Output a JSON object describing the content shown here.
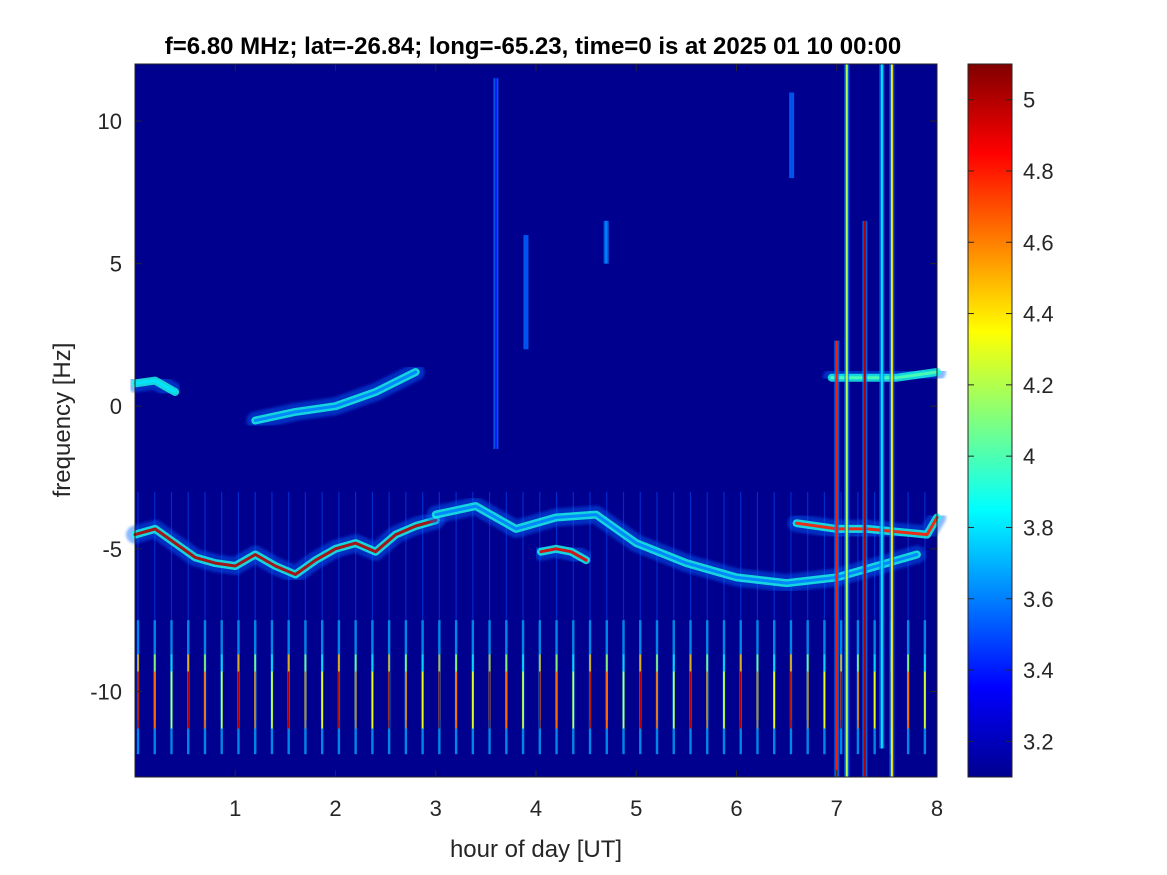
{
  "chart_data": {
    "type": "heatmap",
    "title": "f=6.80 MHz;  lat=-26.84; long=-65.23, time=0 is at 2025 01 10 00:00",
    "xlabel": "hour of day [UT]",
    "ylabel": "frequency [Hz]",
    "xlim": [
      0,
      8
    ],
    "ylim": [
      -13,
      12
    ],
    "x_ticks": [
      1,
      2,
      3,
      4,
      5,
      6,
      7,
      8
    ],
    "x_tick_labels": [
      "1",
      "2",
      "3",
      "4",
      "5",
      "6",
      "7",
      "8"
    ],
    "y_ticks": [
      10,
      5,
      0,
      -5,
      -10
    ],
    "y_tick_labels": [
      "10",
      "5",
      "0",
      "-5",
      "-10"
    ],
    "colorbar": {
      "range": [
        3.1,
        5.1
      ],
      "ticks": [
        5,
        4.8,
        4.6,
        4.4,
        4.2,
        4,
        3.8,
        3.6,
        3.4,
        3.2
      ],
      "tick_labels": [
        "5",
        "4.8",
        "4.6",
        "4.4",
        "4.2",
        "4",
        "3.8",
        "3.6",
        "3.4",
        "3.2"
      ],
      "colormap": "jet"
    },
    "background_color": "#00008f",
    "traces": [
      {
        "name": "doppler-trace-main",
        "points": [
          [
            0.0,
            -4.5
          ],
          [
            0.2,
            -4.3
          ],
          [
            0.4,
            -4.8
          ],
          [
            0.6,
            -5.3
          ],
          [
            0.8,
            -5.5
          ],
          [
            1.0,
            -5.6
          ],
          [
            1.2,
            -5.2
          ],
          [
            1.4,
            -5.6
          ],
          [
            1.6,
            -5.9
          ],
          [
            1.8,
            -5.4
          ],
          [
            2.0,
            -5.0
          ],
          [
            2.2,
            -4.8
          ],
          [
            2.4,
            -5.1
          ],
          [
            2.6,
            -4.5
          ],
          [
            2.8,
            -4.2
          ],
          [
            3.0,
            -4.0
          ]
        ],
        "peak_value": 5.0
      },
      {
        "name": "doppler-trace-faint-arc",
        "points": [
          [
            3.0,
            -3.8
          ],
          [
            3.4,
            -3.5
          ],
          [
            3.8,
            -4.3
          ],
          [
            4.2,
            -3.9
          ],
          [
            4.6,
            -3.8
          ],
          [
            5.0,
            -4.8
          ],
          [
            5.5,
            -5.5
          ],
          [
            6.0,
            -6.0
          ],
          [
            6.5,
            -6.2
          ],
          [
            7.0,
            -6.0
          ],
          [
            7.5,
            -5.5
          ],
          [
            7.8,
            -5.2
          ]
        ],
        "peak_value": 3.6
      },
      {
        "name": "doppler-trace-burst-4h",
        "points": [
          [
            4.05,
            -5.1
          ],
          [
            4.2,
            -5.0
          ],
          [
            4.35,
            -5.1
          ],
          [
            4.5,
            -5.4
          ]
        ],
        "peak_value": 4.9
      },
      {
        "name": "doppler-trace-late",
        "points": [
          [
            6.6,
            -4.1
          ],
          [
            7.0,
            -4.3
          ],
          [
            7.3,
            -4.3
          ],
          [
            7.6,
            -4.4
          ],
          [
            7.9,
            -4.5
          ],
          [
            8.0,
            -3.9
          ]
        ],
        "peak_value": 4.8
      },
      {
        "name": "upper-trace-early",
        "points": [
          [
            0.0,
            0.8
          ],
          [
            0.2,
            0.9
          ],
          [
            0.4,
            0.5
          ]
        ],
        "peak_value": 3.8
      },
      {
        "name": "upper-trace-rising",
        "points": [
          [
            1.2,
            -0.5
          ],
          [
            1.6,
            -0.2
          ],
          [
            2.0,
            0.0
          ],
          [
            2.4,
            0.5
          ],
          [
            2.8,
            1.2
          ]
        ],
        "peak_value": 3.6
      },
      {
        "name": "upper-trace-late",
        "points": [
          [
            6.95,
            1.0
          ],
          [
            7.3,
            1.0
          ],
          [
            7.6,
            1.0
          ],
          [
            8.0,
            1.2
          ]
        ],
        "peak_value": 4.0
      }
    ],
    "periodic_stripes": {
      "x_start": 0.03,
      "x_end": 8.0,
      "spacing_hours": 0.167,
      "y_range": [
        -12.2,
        -7.5
      ],
      "peak_value": 5.0
    },
    "vertical_spikes": [
      {
        "x": 7.0,
        "y_range": [
          -13,
          2.3
        ],
        "value": 4.8
      },
      {
        "x": 7.1,
        "y_range": [
          -13,
          12
        ],
        "value": 4.2
      },
      {
        "x": 7.28,
        "y_range": [
          -13,
          6.5
        ],
        "value": 5.0
      },
      {
        "x": 7.45,
        "y_range": [
          -12,
          12
        ],
        "value": 3.8
      },
      {
        "x": 7.55,
        "y_range": [
          -13,
          12
        ],
        "value": 4.4
      },
      {
        "x": 6.55,
        "y_range": [
          8,
          11
        ],
        "value": 3.5
      },
      {
        "x": 3.6,
        "y_range": [
          -1.5,
          11.5
        ],
        "value": 3.4
      },
      {
        "x": 3.9,
        "y_range": [
          2,
          6
        ],
        "value": 3.5
      },
      {
        "x": 4.7,
        "y_range": [
          5,
          6.5
        ],
        "value": 3.6
      }
    ]
  }
}
